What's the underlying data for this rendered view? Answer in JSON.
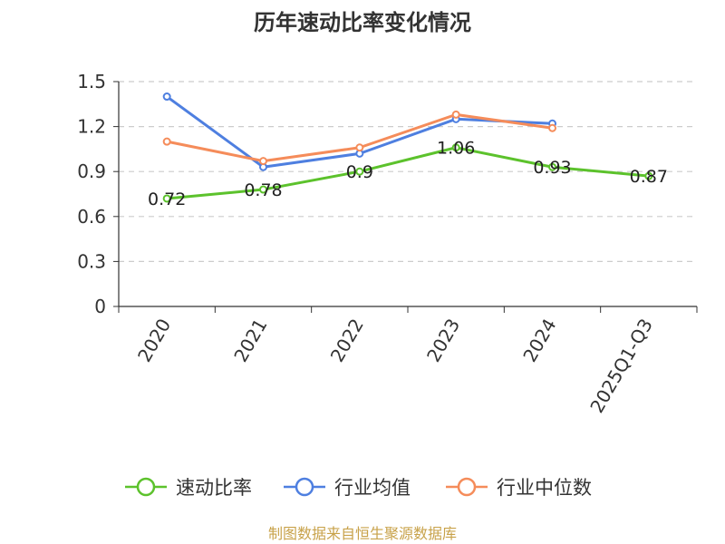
{
  "chart_data": {
    "type": "line",
    "title": "历年速动比率变化情况",
    "categories": [
      "2020",
      "2021",
      "2022",
      "2023",
      "2024",
      "2025Q1-Q3"
    ],
    "ylim": [
      0,
      1.5
    ],
    "yticks": [
      "0",
      "0.3",
      "0.6",
      "0.9",
      "1.2",
      "1.5"
    ],
    "grid": true,
    "legend": "bottom",
    "series": [
      {
        "name": "速动比率",
        "color": "#5cc22c",
        "values": [
          0.72,
          0.78,
          0.9,
          1.06,
          0.93,
          0.87
        ],
        "labels": [
          "0.72",
          "0.78",
          "0.9",
          "1.06",
          "0.93",
          "0.87"
        ]
      },
      {
        "name": "行业均值",
        "color": "#4e7fe0",
        "values": [
          1.4,
          0.93,
          1.02,
          1.25,
          1.22,
          null
        ]
      },
      {
        "name": "行业中位数",
        "color": "#f58c5a",
        "values": [
          1.1,
          0.97,
          1.06,
          1.28,
          1.19,
          null
        ]
      }
    ]
  },
  "source": "制图数据来自恒生聚源数据库"
}
